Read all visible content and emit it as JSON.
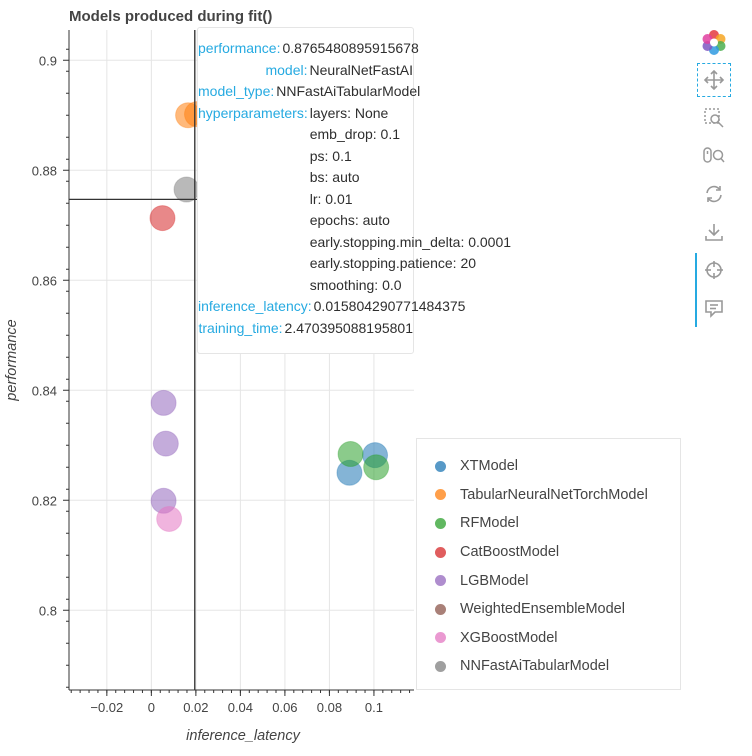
{
  "chart_data": {
    "type": "scatter",
    "title": "Models produced during fit()",
    "xlabel": "inference_latency",
    "ylabel": "performance",
    "xlim": [
      -0.037,
      0.118
    ],
    "ylim": [
      0.7855,
      0.9055
    ],
    "x_ticks": [
      -0.02,
      0,
      0.02,
      0.04,
      0.06,
      0.08,
      0.1
    ],
    "x_tick_labels": [
      "−0.02",
      "0",
      "0.02",
      "0.04",
      "0.06",
      "0.08",
      "0.1"
    ],
    "y_ticks": [
      0.8,
      0.82,
      0.84,
      0.86,
      0.88,
      0.9
    ],
    "y_tick_labels": [
      "0.8",
      "0.82",
      "0.84",
      "0.86",
      "0.88",
      "0.9"
    ],
    "grid": true,
    "legend_position": "bottom-right",
    "crosshair": {
      "x": 0.0195,
      "y": 0.8747
    },
    "series": [
      {
        "name": "XTModel",
        "color": "#1f77b4",
        "points": [
          [
            0.089,
            0.825
          ],
          [
            0.1005,
            0.8282
          ]
        ]
      },
      {
        "name": "TabularNeuralNetTorchModel",
        "color": "#ff7f0e",
        "points": [
          [
            0.0165,
            0.89
          ],
          [
            0.0205,
            0.8902
          ]
        ]
      },
      {
        "name": "RFModel",
        "color": "#2ca02c",
        "points": [
          [
            0.0895,
            0.8284
          ],
          [
            0.101,
            0.826
          ]
        ]
      },
      {
        "name": "CatBoostModel",
        "color": "#d62728",
        "points": [
          [
            0.005,
            0.8713
          ]
        ]
      },
      {
        "name": "LGBModel",
        "color": "#9467bd",
        "points": [
          [
            0.0055,
            0.8377
          ],
          [
            0.0065,
            0.8303
          ],
          [
            0.0055,
            0.8199
          ]
        ]
      },
      {
        "name": "WeightedEnsembleModel",
        "color": "#8c564b",
        "points": []
      },
      {
        "name": "XGBoostModel",
        "color": "#e377c2",
        "points": [
          [
            0.008,
            0.8166
          ]
        ]
      },
      {
        "name": "NNFastAiTabularModel",
        "color": "#7f7f7f",
        "points": [
          [
            0.0158,
            0.8765
          ]
        ]
      }
    ]
  },
  "tooltip": {
    "performance_key": "performance:",
    "performance": "0.8765480895915678",
    "model_key": "model:",
    "model": "NeuralNetFastAI",
    "model_type_key": "model_type:",
    "model_type": "NNFastAiTabularModel",
    "hyperparameters_key": "hyperparameters:",
    "hyperparameters": [
      "layers: None",
      "emb_drop: 0.1",
      "ps: 0.1",
      "bs: auto",
      "lr: 0.01",
      "epochs: auto",
      "early.stopping.min_delta: 0.0001",
      "early.stopping.patience: 20",
      "smoothing: 0.0"
    ],
    "inference_latency_key": "inference_latency:",
    "inference_latency": "0.015804290771484375",
    "training_time_key": "training_time:",
    "training_time": "2.470395088195801"
  },
  "toolbar": {
    "tools": [
      "bokeh-logo-icon",
      "pan-icon",
      "box-zoom-icon",
      "wheel-zoom-icon",
      "reset-icon",
      "save-icon",
      "crosshair-icon",
      "hover-icon"
    ]
  }
}
